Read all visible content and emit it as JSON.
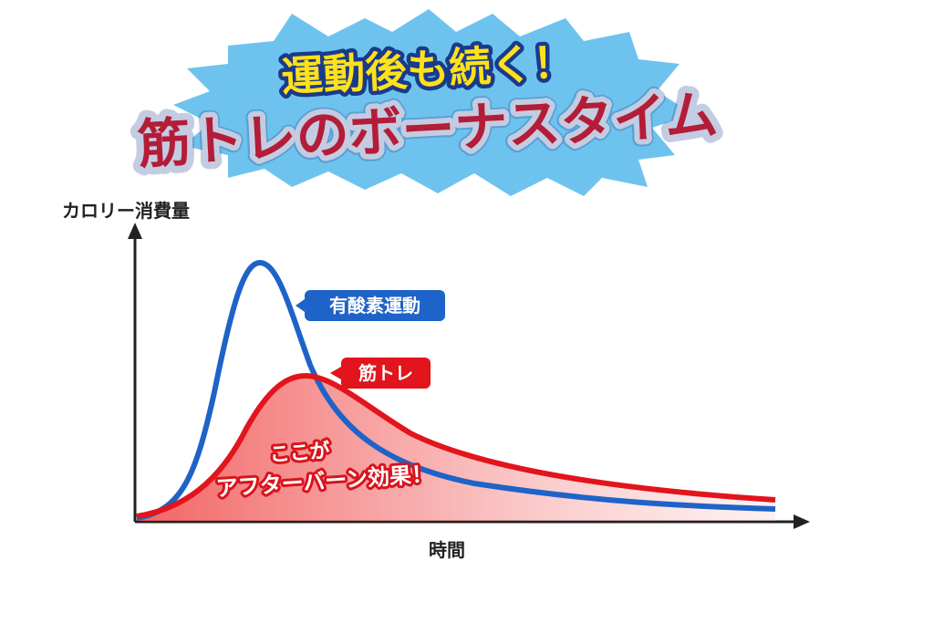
{
  "header": {
    "line1": "運動後も続く！",
    "line2": "筋トレのボーナスタイム"
  },
  "axes": {
    "y_label": "カロリー消費量",
    "x_label": "時間"
  },
  "labels": {
    "aerobic": "有酸素運動",
    "strength": "筋トレ"
  },
  "annotation": {
    "line1": "ここが",
    "line2": "アフターバーン効果！"
  }
}
